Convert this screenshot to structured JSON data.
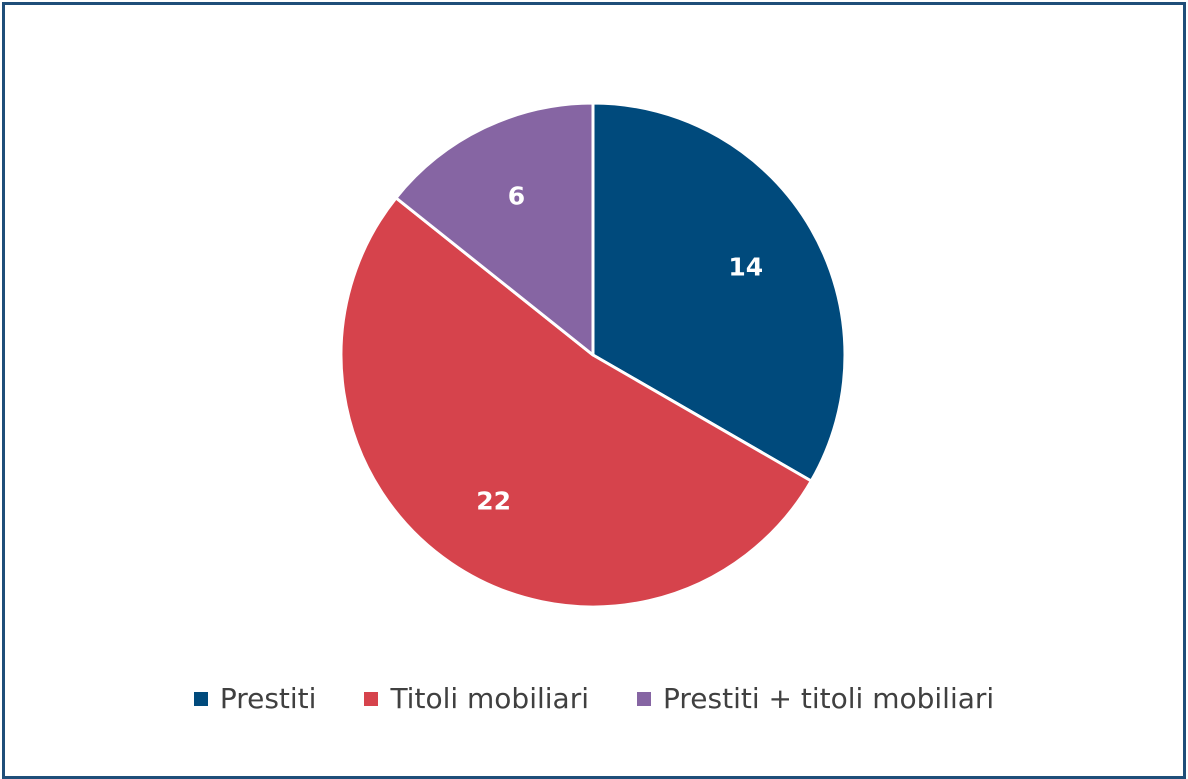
{
  "chart_data": {
    "type": "pie",
    "title": "",
    "categories": [
      "Prestiti",
      "Titoli mobiliari",
      "Prestiti + titoli mobiliari"
    ],
    "values": [
      14,
      22,
      6
    ],
    "colors": [
      "#004a7c",
      "#d6434c",
      "#8665a3"
    ],
    "data_labels": [
      "14",
      "22",
      "6"
    ],
    "legend_position": "bottom",
    "start_angle_deg": 0,
    "direction": "clockwise"
  }
}
